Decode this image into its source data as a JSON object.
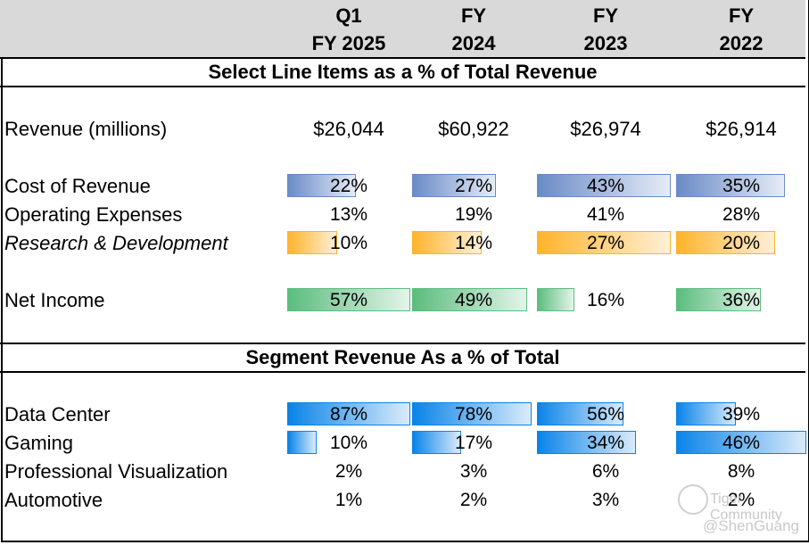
{
  "header": {
    "columns": [
      {
        "line1": "Q1",
        "line2": "FY 2025"
      },
      {
        "line1": "FY",
        "line2": "2024"
      },
      {
        "line1": "FY",
        "line2": "2023"
      },
      {
        "line1": "FY",
        "line2": "2022"
      }
    ]
  },
  "section1": {
    "title": "Select Line Items as a % of Total Revenue",
    "revenue": {
      "label": "Revenue (millions)",
      "values": [
        "$26,044",
        "$60,922",
        "$26,974",
        "$26,914"
      ]
    },
    "rows": [
      {
        "label": "Cost of Revenue",
        "italic": false,
        "bar": "blue",
        "values": [
          22,
          27,
          43,
          35
        ],
        "display": [
          "22%",
          "27%",
          "43%",
          "35%"
        ]
      },
      {
        "label": "Operating Expenses",
        "italic": false,
        "bar": null,
        "values": [
          13,
          19,
          41,
          28
        ],
        "display": [
          "13%",
          "19%",
          "41%",
          "28%"
        ]
      },
      {
        "label": "Research & Development",
        "italic": true,
        "bar": "orange",
        "values": [
          10,
          14,
          27,
          20
        ],
        "display": [
          "10%",
          "14%",
          "27%",
          "20%"
        ]
      },
      {
        "label": "Net Income",
        "italic": false,
        "bar": "green",
        "values": [
          57,
          49,
          16,
          36
        ],
        "display": [
          "57%",
          "49%",
          "16%",
          "36%"
        ]
      }
    ]
  },
  "section2": {
    "title": "Segment Revenue As a % of Total",
    "rows": [
      {
        "label": "Data Center",
        "bar": "azure",
        "values": [
          87,
          78,
          56,
          39
        ],
        "display": [
          "87%",
          "78%",
          "56%",
          "39%"
        ]
      },
      {
        "label": "Gaming",
        "bar": "azure",
        "values": [
          10,
          17,
          34,
          46
        ],
        "display": [
          "10%",
          "17%",
          "34%",
          "46%"
        ]
      },
      {
        "label": "Professional Visualization",
        "bar": null,
        "values": [
          2,
          3,
          6,
          8
        ],
        "display": [
          "2%",
          "3%",
          "6%",
          "8%"
        ]
      },
      {
        "label": "Automotive",
        "bar": null,
        "values": [
          1,
          2,
          3,
          2
        ],
        "display": [
          "1%",
          "2%",
          "3%",
          "2%"
        ]
      }
    ]
  },
  "bar_colors": {
    "blue": {
      "start": "#6a8bc6",
      "end": "#e6ecf7",
      "border": "#6a8bc6"
    },
    "orange": {
      "start": "#ffb42a",
      "end": "#fff0d6",
      "border": "#ffb42a"
    },
    "green": {
      "start": "#5bbd7e",
      "end": "#e4f4ea",
      "border": "#5bbd7e"
    },
    "azure": {
      "start": "#0a84e8",
      "end": "#d9ebfb",
      "border": "#0a84e8"
    }
  },
  "watermark": {
    "brand": "Tiger Community",
    "handle": "@ShenGuang"
  }
}
